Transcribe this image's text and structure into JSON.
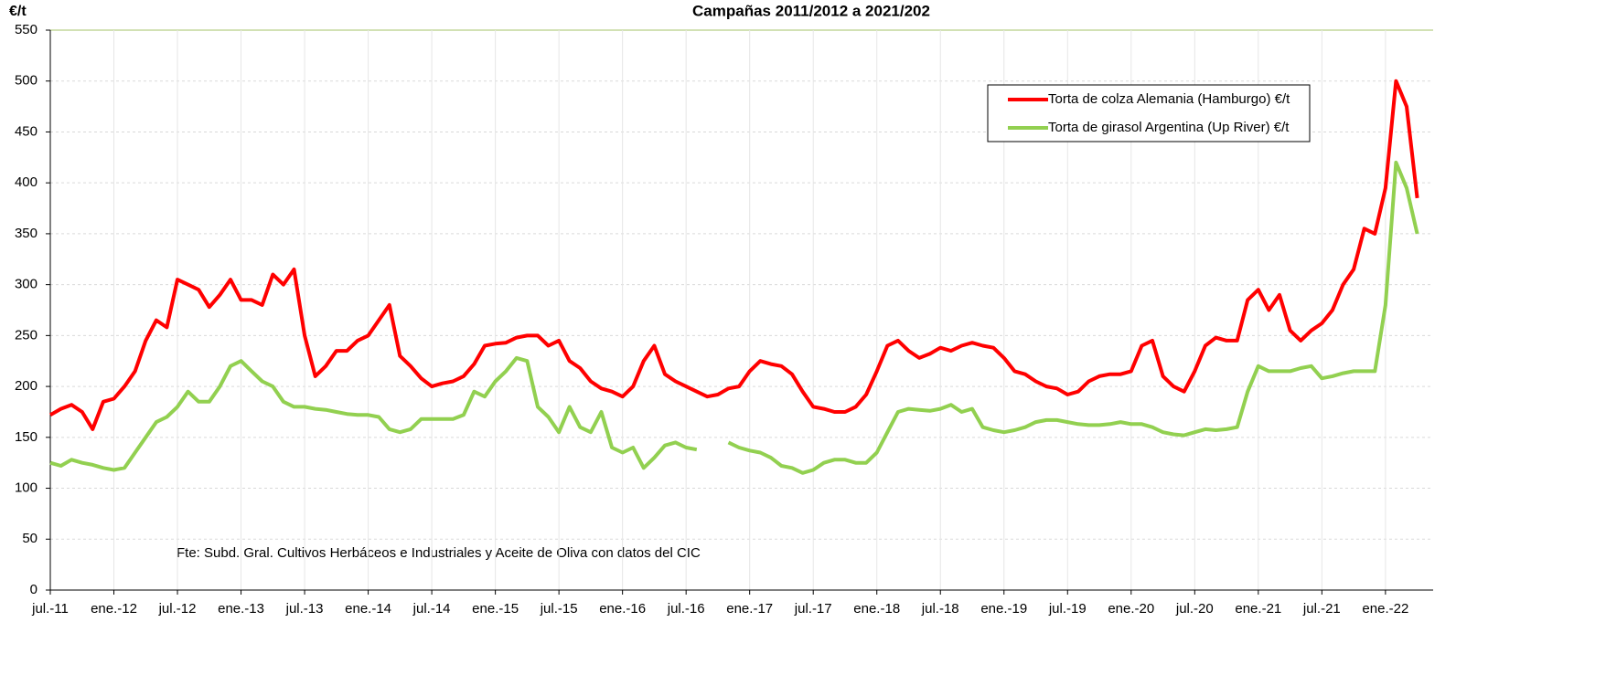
{
  "chart_data": {
    "type": "line",
    "title": "Campañas 2011/2012 a 2021/202",
    "y_label": "€/t",
    "annotation": "Fte: Subd. Gral. Cultivos Herbáceos e Industriales y Aceite de Oliva con datos del CIC",
    "categories": [
      "jul.-11",
      null,
      null,
      null,
      null,
      null,
      "ene.-12",
      null,
      null,
      null,
      null,
      null,
      "jul.-12",
      null,
      null,
      null,
      null,
      null,
      "ene.-13",
      null,
      null,
      null,
      null,
      null,
      "jul.-13",
      null,
      null,
      null,
      null,
      null,
      "ene.-14",
      null,
      null,
      null,
      null,
      null,
      "jul.-14",
      null,
      null,
      null,
      null,
      null,
      "ene.-15",
      null,
      null,
      null,
      null,
      null,
      "jul.-15",
      null,
      null,
      null,
      null,
      null,
      "ene.-16",
      null,
      null,
      null,
      null,
      null,
      "jul.-16",
      null,
      null,
      null,
      null,
      null,
      "ene.-17",
      null,
      null,
      null,
      null,
      null,
      "jul.-17",
      null,
      null,
      null,
      null,
      null,
      "ene.-18",
      null,
      null,
      null,
      null,
      null,
      "jul.-18",
      null,
      null,
      null,
      null,
      null,
      "ene.-19",
      null,
      null,
      null,
      null,
      null,
      "jul.-19",
      null,
      null,
      null,
      null,
      null,
      "ene.-20",
      null,
      null,
      null,
      null,
      null,
      "jul.-20",
      null,
      null,
      null,
      null,
      null,
      "ene.-21",
      null,
      null,
      null,
      null,
      null,
      "jul.-21",
      null,
      null,
      null,
      null,
      null,
      "ene.-22",
      null,
      null,
      null
    ],
    "series": [
      {
        "name": "Torta de colza Alemania (Hamburgo) €/t",
        "color": "#ff0000",
        "values": [
          172,
          178,
          182,
          175,
          158,
          185,
          188,
          200,
          215,
          245,
          265,
          258,
          305,
          300,
          295,
          278,
          290,
          305,
          285,
          285,
          280,
          310,
          300,
          315,
          250,
          210,
          220,
          235,
          235,
          245,
          250,
          265,
          280,
          230,
          220,
          208,
          200,
          203,
          205,
          210,
          222,
          240,
          242,
          243,
          248,
          250,
          250,
          240,
          245,
          225,
          218,
          205,
          198,
          195,
          190,
          200,
          225,
          240,
          212,
          205,
          200,
          195,
          190,
          192,
          198,
          200,
          215,
          225,
          222,
          220,
          212,
          195,
          180,
          178,
          175,
          175,
          180,
          192,
          215,
          240,
          245,
          235,
          228,
          232,
          238,
          235,
          240,
          243,
          240,
          238,
          228,
          215,
          212,
          205,
          200,
          198,
          192,
          195,
          205,
          210,
          212,
          212,
          215,
          240,
          245,
          210,
          200,
          195,
          215,
          240,
          248,
          245,
          245,
          285,
          295,
          275,
          290,
          255,
          245,
          255,
          262,
          275,
          300,
          315,
          355,
          350,
          395,
          500,
          475,
          385
        ]
      },
      {
        "name": "Torta de girasol Argentina (Up River) €/t",
        "color": "#92d050",
        "values": [
          125,
          122,
          128,
          125,
          123,
          120,
          118,
          120,
          135,
          150,
          165,
          170,
          180,
          195,
          185,
          185,
          200,
          220,
          225,
          215,
          205,
          200,
          185,
          180,
          180,
          178,
          177,
          175,
          173,
          172,
          172,
          170,
          158,
          155,
          158,
          168,
          168,
          168,
          168,
          172,
          195,
          190,
          205,
          215,
          228,
          225,
          180,
          170,
          155,
          180,
          160,
          155,
          175,
          140,
          135,
          140,
          120,
          130,
          142,
          145,
          140,
          138,
          null,
          null,
          145,
          140,
          137,
          135,
          130,
          122,
          120,
          115,
          118,
          125,
          128,
          128,
          125,
          125,
          135,
          155,
          175,
          178,
          177,
          176,
          178,
          182,
          175,
          178,
          160,
          157,
          155,
          157,
          160,
          165,
          167,
          167,
          165,
          163,
          162,
          162,
          163,
          165,
          163,
          163,
          160,
          155,
          153,
          152,
          155,
          158,
          157,
          158,
          160,
          195,
          220,
          215,
          215,
          215,
          218,
          220,
          208,
          210,
          213,
          215,
          215,
          215,
          280,
          420,
          395,
          350
        ]
      }
    ],
    "ylim": [
      0,
      550
    ],
    "yticks": [
      0,
      50,
      100,
      150,
      200,
      250,
      300,
      350,
      400,
      450,
      500,
      550
    ],
    "grid": true,
    "legend": "top-right"
  }
}
